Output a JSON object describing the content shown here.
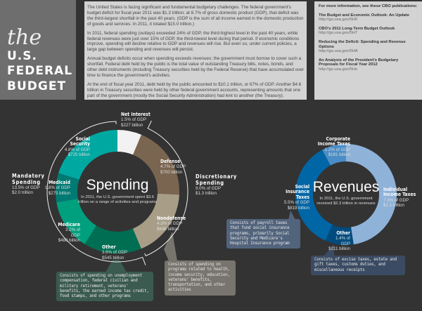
{
  "title": {
    "the": "the",
    "line1": "U.S.",
    "line2": "FEDERAL",
    "line3": "BUDGET"
  },
  "intro": [
    "The United States is facing significant and fundamental budgetary challenges. The federal government's budget deficit for fiscal year 2011 was $1.3 trillion; at 8.7% of gross domestic product (GDP), that deficit was the third-largest shortfall in the past 40 years. (GDP is the sum of all income earned in the domestic production of goods and services. In 2011, it totaled $15.0 trillion.)",
    "In 2011, federal spending (outlays) exceeded 24% of GDP, the third-highest level in the past 40 years, while federal revenues were just over 15% of GDP, the third-lowest level during that period. If economic conditions improve, spending will decline relative to GDP and revenues will rise. But even so, under current policies, a large gap between spending and revenues will persist.",
    "Annual budget deficits occur when spending exceeds revenues; the government must borrow to cover such a shortfall. Federal debt held by the public is the total value of outstanding Treasury bills, notes, bonds, and other debt instruments (including Treasury securities held by the Federal Reserve) that have accumulated over time to finance the government's activities.",
    "At the end of fiscal year 2011, debt held by the public amounted to $10.1 trillion, or 67% of GDP. Another $4.6 trillion in Treasury securities were held by other federal government accounts, representing amounts that one part of the government (mostly the Social Security Administration) had lent to another (the Treasury)."
  ],
  "pubs": {
    "heading": "For more information, see these CBO publications:",
    "items": [
      {
        "title": "The Budget and Economic Outlook: An Update",
        "url": "http://go.usa.gov/5H0"
      },
      {
        "title": "CBO's 2011 Long-Term Budget Outlook",
        "url": "http://go.usa.gov/5H7"
      },
      {
        "title": "Reducing the Deficit: Spending and Revenue Options",
        "url": "http://go.usa.gov/5HA"
      },
      {
        "title": "An Analysis of the President's Budgetary Proposals for Fiscal Year 2012",
        "url": "http://go.usa.gov/5Ho"
      }
    ]
  },
  "chart_data": [
    {
      "type": "pie",
      "title": "Spending",
      "subtitle": "In 2011, the U.S. government spent $3.6 trillion on a range of activities and programs",
      "unit": "billion $",
      "slices": [
        {
          "name": "Net Interest",
          "pct_gdp": "1.5% of GDP",
          "amount": "$227 billion",
          "value": 227,
          "color": "#f2f2f2"
        },
        {
          "name": "Defense",
          "pct_gdp": "4.7% of GDP",
          "amount": "$700 billion",
          "value": 700,
          "color": "#7a6550"
        },
        {
          "name": "Nondefense",
          "pct_gdp": "4.3% of GDP",
          "amount": "$646 billion",
          "value": 646,
          "color": "#a89e88"
        },
        {
          "name": "Other",
          "pct_gdp": "3.6% of GDP",
          "amount": "$545 billion",
          "value": 545,
          "color": "#006e52"
        },
        {
          "name": "Medicare",
          "pct_gdp": "3.2% of GDP",
          "amount": "$480 billion",
          "value": 480,
          "color": "#00a07f"
        },
        {
          "name": "Medicaid",
          "pct_gdp": "1.8% of GDP",
          "amount": "$275 billion",
          "value": 275,
          "color": "#007a72"
        },
        {
          "name": "Social Security",
          "pct_gdp": "4.8% of GDP",
          "amount": "$725 billion",
          "value": 725,
          "color": "#00a8a2"
        }
      ],
      "groups": [
        {
          "name": "Mandatory Spending",
          "pct_gdp": "13.5% of GDP",
          "amount": "$2.0 trillion"
        },
        {
          "name": "Discretionary Spending",
          "pct_gdp": "9.0% of GDP",
          "amount": "$1.3 trillion"
        }
      ],
      "notes": {
        "other": "Consists of spending on unemployment compensation, federal civilian and military retirement, veterans' benefits, the earned income tax credit, food stamps, and other programs",
        "nondefense": "Consists of spending on programs related to health, income security, education, veterans' benefits, transportation, and other activities"
      }
    },
    {
      "type": "pie",
      "title": "Revenues",
      "subtitle": "In 2011, the U.S. government received $2.3 trillion in revenues",
      "unit": "billion $",
      "slices": [
        {
          "name": "Individual Income Taxes",
          "pct_gdp": "7.3% of GDP",
          "amount": "$1.1 trillion",
          "value": 1100,
          "color": "#8fb2d9"
        },
        {
          "name": "Other",
          "pct_gdp": "1.4% of GDP",
          "amount": "$211 billion",
          "value": 211,
          "color": "#004b7e"
        },
        {
          "name": "Social Insurance Taxes",
          "pct_gdp": "5.5% of GDP",
          "amount": "$819 billion",
          "value": 819,
          "color": "#0066a6"
        },
        {
          "name": "Corporate Income Taxes",
          "pct_gdp": "1.2% of GDP",
          "amount": "$181 billion",
          "value": 181,
          "color": "#4b8dc6"
        }
      ],
      "notes": {
        "social": "Consists of payroll taxes that fund social insurance programs, primarily Social Security and Medicare's Hospital Insurance program",
        "other": "Consists of excise taxes, estate and gift taxes, customs duties, and miscellaneous receipts"
      }
    }
  ]
}
